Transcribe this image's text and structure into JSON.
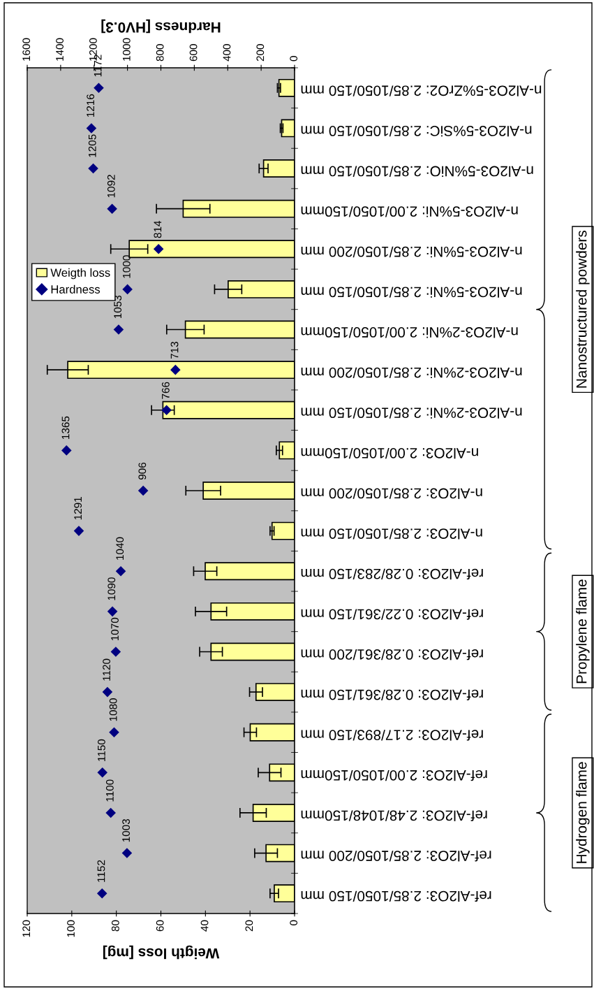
{
  "chart_data": {
    "type": "bar",
    "orientation": "horizontal",
    "categories": [
      "n-Al2O3-5%ZrO2: 2.85/1050/150 mm",
      "n-Al2O3-5%SiC: 2.85/1050/150 mm",
      "n-Al2O3-5%NiO: 2.85/1050/150 mm",
      "n-Al2O3-5%Ni: 2.00/1050/150mm",
      "n-Al2O3-5%Ni: 2.85/1050/200 mm",
      "n-Al2O3-5%Ni: 2.85/1050/150 mm",
      "n-Al2O3-2%Ni: 2.00/1050/150mm",
      "n-Al2O3-2%Ni: 2.85/1050/200 mm",
      "n-Al2O3-2%Ni: 2.85/1050/150 mm",
      "n-Al2O3: 2.00/1050/150mm",
      "n-Al2O3: 2.85/1050/200 mm",
      "n-Al2O3: 2.85/1050/150 mm",
      "ref-Al2O3: 0.28/283/150 mm",
      "ref-Al2O3: 0.22/361/150 mm",
      "ref-Al2O3: 0.28/361/200 mm",
      "ref-Al2O3: 0.28/361/150 mm",
      "ref-Al2O3: 2.17/893/150 mm",
      "ref-Al2O3: 2.00/1050/150mm",
      "ref-Al2O3: 2.48/1048/150mm",
      "ref-Al2O3: 2.85/1050/200 mm",
      "ref-Al2O3: 2.85/1050/150 mm"
    ],
    "series": [
      {
        "name": "Weigth loss",
        "type": "bar",
        "color": "#ffff99",
        "values": [
          7.0,
          5.8,
          13.9,
          50.0,
          74.2,
          29.8,
          49.0,
          101.8,
          59.1,
          6.8,
          41.0,
          10.1,
          40.1,
          37.5,
          37.5,
          17.3,
          19.9,
          11.2,
          18.6,
          12.8,
          9.1
        ],
        "errors": [
          0.7,
          0.6,
          2.0,
          12.0,
          8.3,
          6.1,
          8.4,
          9.2,
          5.1,
          1.4,
          7.8,
          0.9,
          5.2,
          7.0,
          5.1,
          2.9,
          2.8,
          5.1,
          5.9,
          5.1,
          1.9
        ]
      },
      {
        "name": "Hardness",
        "type": "scatter",
        "axis": "x2",
        "color": "#000080",
        "values": [
          1172,
          1216,
          1205,
          1092,
          814,
          1000,
          1053,
          713,
          766,
          1365,
          906,
          1291,
          1040,
          1090,
          1070,
          1120,
          1080,
          1150,
          1100,
          1003,
          1152
        ],
        "value_labels": [
          "1172",
          "1216",
          "1205",
          "1092",
          "814",
          "1000",
          "1053",
          "713",
          "766",
          "1365",
          "906",
          "1291",
          "1040",
          "1090",
          "1070",
          "1120",
          "1080",
          "1150",
          "1100",
          "1003",
          "1152"
        ]
      }
    ],
    "xlabel": "Weigth loss [mg]",
    "xlim": [
      120,
      0
    ],
    "xticks": [
      120,
      100,
      80,
      60,
      40,
      20,
      0
    ],
    "x2label": "Hardness [HV0.3]",
    "x2lim": [
      1600,
      0
    ],
    "x2ticks": [
      1600,
      1400,
      1200,
      1000,
      800,
      600,
      400,
      200,
      0
    ],
    "marker": "diamond",
    "legend": "left",
    "grid": false,
    "annotations": [
      "Nanostructured powders",
      "Propylene flame",
      "Hydrogen flame"
    ]
  }
}
